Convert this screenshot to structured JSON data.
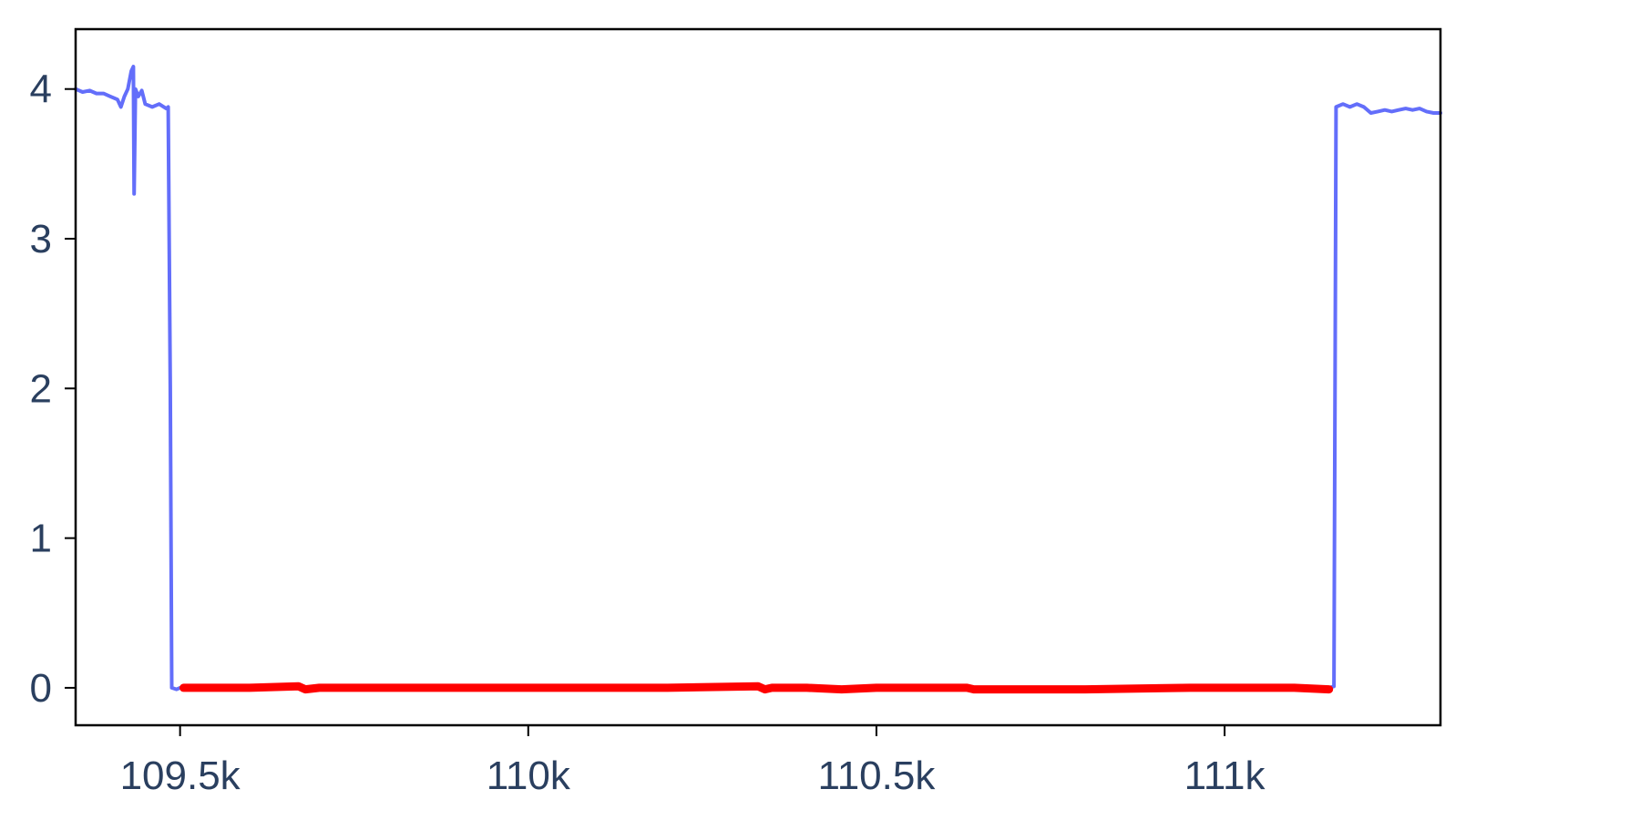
{
  "chart_data": {
    "type": "line",
    "title": "",
    "xlabel": "",
    "ylabel": "",
    "xlim": [
      109350,
      111310
    ],
    "ylim": [
      -0.25,
      4.4
    ],
    "x_ticks": [
      {
        "value": 109500,
        "label": "109.5k"
      },
      {
        "value": 110000,
        "label": "110k"
      },
      {
        "value": 110500,
        "label": "110.5k"
      },
      {
        "value": 111000,
        "label": "111k"
      }
    ],
    "y_ticks": [
      {
        "value": 0,
        "label": "0"
      },
      {
        "value": 1,
        "label": "1"
      },
      {
        "value": 2,
        "label": "2"
      },
      {
        "value": 3,
        "label": "3"
      },
      {
        "value": 4,
        "label": "4"
      }
    ],
    "grid": false,
    "legend": "none",
    "series": [
      {
        "color": "#636efa",
        "line_width": 4,
        "points": [
          [
            109350,
            4.0
          ],
          [
            109360,
            3.98
          ],
          [
            109370,
            3.99
          ],
          [
            109380,
            3.97
          ],
          [
            109390,
            3.97
          ],
          [
            109400,
            3.95
          ],
          [
            109410,
            3.93
          ],
          [
            109415,
            3.88
          ],
          [
            109420,
            3.95
          ],
          [
            109425,
            4.0
          ],
          [
            109430,
            4.12
          ],
          [
            109433,
            4.15
          ],
          [
            109434,
            3.3
          ],
          [
            109436,
            4.0
          ],
          [
            109440,
            3.95
          ],
          [
            109445,
            3.99
          ],
          [
            109450,
            3.9
          ],
          [
            109460,
            3.88
          ],
          [
            109470,
            3.9
          ],
          [
            109480,
            3.87
          ],
          [
            109483,
            3.88
          ],
          [
            109486,
            2.0
          ],
          [
            109488,
            0.0
          ],
          [
            109495,
            -0.01
          ],
          [
            109500,
            0.0
          ],
          [
            111000,
            0.0
          ],
          [
            111150,
            0.0
          ],
          [
            111157,
            0.01
          ],
          [
            111160,
            3.88
          ],
          [
            111170,
            3.9
          ],
          [
            111180,
            3.88
          ],
          [
            111190,
            3.9
          ],
          [
            111200,
            3.88
          ],
          [
            111210,
            3.84
          ],
          [
            111220,
            3.85
          ],
          [
            111230,
            3.86
          ],
          [
            111240,
            3.85
          ],
          [
            111250,
            3.86
          ],
          [
            111260,
            3.87
          ],
          [
            111270,
            3.86
          ],
          [
            111280,
            3.87
          ],
          [
            111290,
            3.85
          ],
          [
            111300,
            3.84
          ],
          [
            111310,
            3.84
          ]
        ]
      },
      {
        "color": "#ff0000",
        "line_width": 9,
        "points": [
          [
            109505,
            0.0
          ],
          [
            109600,
            0.0
          ],
          [
            109670,
            0.01
          ],
          [
            109680,
            -0.01
          ],
          [
            109700,
            0.0
          ],
          [
            109800,
            0.0
          ],
          [
            110000,
            0.0
          ],
          [
            110200,
            0.0
          ],
          [
            110330,
            0.01
          ],
          [
            110340,
            -0.01
          ],
          [
            110350,
            0.0
          ],
          [
            110400,
            0.0
          ],
          [
            110450,
            -0.01
          ],
          [
            110500,
            0.0
          ],
          [
            110630,
            0.0
          ],
          [
            110640,
            -0.01
          ],
          [
            110800,
            -0.01
          ],
          [
            110950,
            0.0
          ],
          [
            111000,
            0.0
          ],
          [
            111100,
            0.0
          ],
          [
            111150,
            -0.01
          ]
        ]
      }
    ]
  }
}
